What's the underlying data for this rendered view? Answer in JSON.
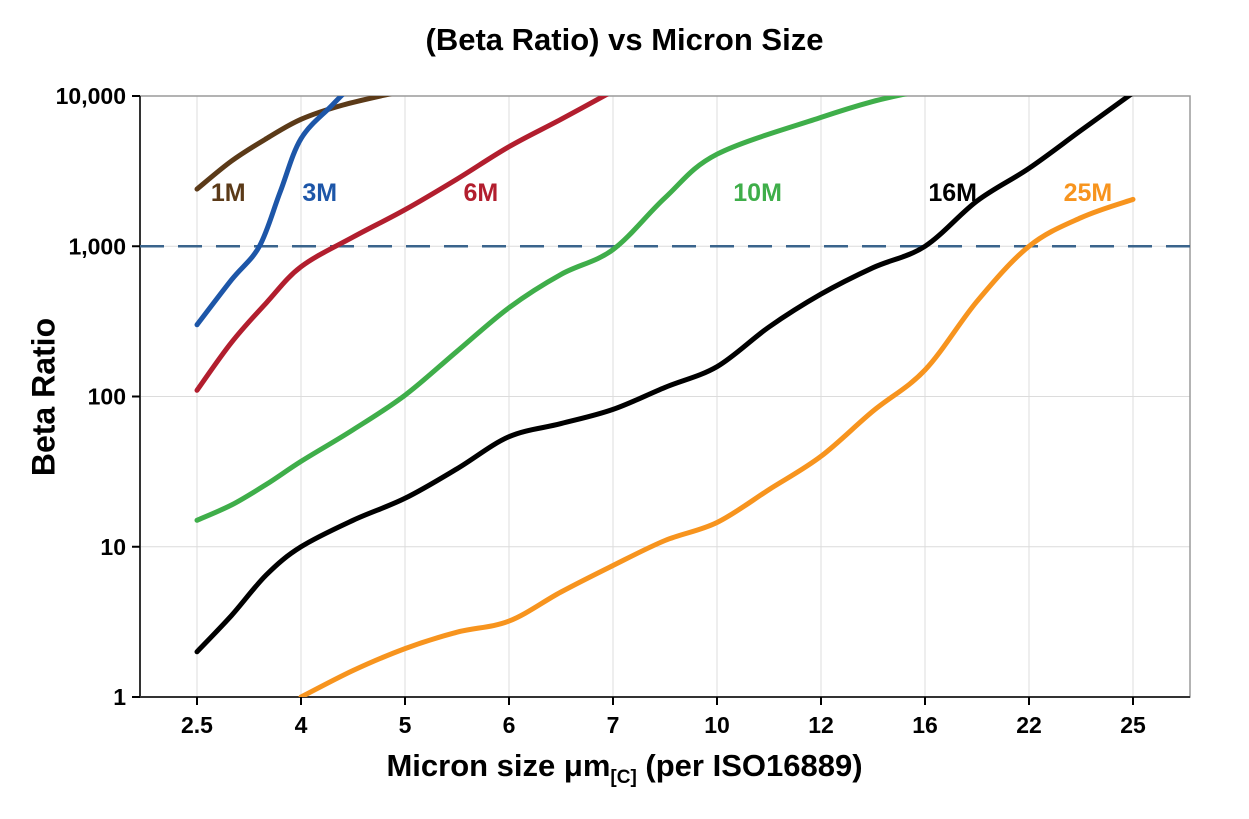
{
  "page": {
    "title": "(Beta Ratio) vs Micron Size",
    "y_axis_title": "Beta Ratio",
    "x_axis_title_main": "Micron size μm",
    "x_axis_title_sub": "[C]",
    "x_axis_title_rest": " (per ISO16889)"
  },
  "chart_data": {
    "type": "line",
    "title": "(Beta Ratio) vs Micron Size",
    "xlabel": "Micron size μm[C] (per ISO16889)",
    "ylabel": "Beta Ratio",
    "x_scale": "categorical",
    "y_scale": "log10",
    "ylim": [
      1,
      10000
    ],
    "grid": true,
    "grid_color": "#DCDCDC",
    "border_color": "#9A9A9A",
    "axis_color": "#333333",
    "categories": [
      2.5,
      4,
      5,
      6,
      7,
      10,
      12,
      16,
      22,
      25
    ],
    "x_tick_labels": [
      "2.5",
      "4",
      "5",
      "6",
      "7",
      "10",
      "12",
      "16",
      "22",
      "25"
    ],
    "y_tick_values": [
      1,
      10,
      100,
      1000,
      10000
    ],
    "y_tick_labels": [
      "1",
      "10",
      "100",
      "1,000",
      "10,000"
    ],
    "reference_line": {
      "y": 1000,
      "color": "#3A648C",
      "style": "dashed"
    },
    "series": [
      {
        "name": "1M",
        "color": "#5B3A18",
        "label_pos": [
          2.95,
          2300
        ],
        "points": [
          [
            2.5,
            2400
          ],
          [
            3,
            3700
          ],
          [
            3.5,
            5200
          ],
          [
            4,
            7000
          ],
          [
            4.4,
            8700
          ],
          [
            4.9,
            10500
          ]
        ]
      },
      {
        "name": "3M",
        "color": "#1D56A8",
        "label_pos": [
          4.18,
          2300
        ],
        "points": [
          [
            2.5,
            300
          ],
          [
            3,
            600
          ],
          [
            3.4,
            1000
          ],
          [
            3.7,
            2300
          ],
          [
            4,
            5200
          ],
          [
            4.3,
            8700
          ],
          [
            4.55,
            13000
          ]
        ]
      },
      {
        "name": "6M",
        "color": "#B21E2E",
        "label_pos": [
          5.73,
          2300
        ],
        "points": [
          [
            2.5,
            110
          ],
          [
            3,
            230
          ],
          [
            3.5,
            420
          ],
          [
            4,
            730
          ],
          [
            4.5,
            1150
          ],
          [
            5,
            1750
          ],
          [
            5.5,
            2800
          ],
          [
            6,
            4600
          ],
          [
            6.5,
            7000
          ],
          [
            7,
            10800
          ]
        ]
      },
      {
        "name": "10M",
        "color": "#3FAE4A",
        "label_pos": [
          10.78,
          2300
        ],
        "points": [
          [
            2.5,
            15
          ],
          [
            3,
            19
          ],
          [
            3.5,
            26
          ],
          [
            4,
            37
          ],
          [
            4.5,
            60
          ],
          [
            5,
            102
          ],
          [
            5.5,
            200
          ],
          [
            6,
            390
          ],
          [
            6.5,
            650
          ],
          [
            7,
            950
          ],
          [
            8.5,
            2100
          ],
          [
            10,
            4100
          ],
          [
            12,
            7200
          ],
          [
            14,
            9200
          ],
          [
            16,
            11000
          ]
        ]
      },
      {
        "name": "16M",
        "color": "#000000",
        "label_pos": [
          17.6,
          2300
        ],
        "points": [
          [
            2.5,
            2
          ],
          [
            3,
            3.5
          ],
          [
            3.5,
            6.5
          ],
          [
            4,
            10
          ],
          [
            4.5,
            15
          ],
          [
            5,
            21
          ],
          [
            5.5,
            33
          ],
          [
            6,
            54
          ],
          [
            6.5,
            66
          ],
          [
            7,
            82
          ],
          [
            8.5,
            115
          ],
          [
            10,
            158
          ],
          [
            11,
            290
          ],
          [
            12,
            480
          ],
          [
            14,
            720
          ],
          [
            16,
            1000
          ],
          [
            19,
            2000
          ],
          [
            22,
            3300
          ],
          [
            23.5,
            5900
          ],
          [
            25,
            10500
          ]
        ]
      },
      {
        "name": "25M",
        "color": "#F7941E",
        "label_pos": [
          23.7,
          2300
        ],
        "points": [
          [
            4,
            1
          ],
          [
            4.5,
            1.5
          ],
          [
            5,
            2.1
          ],
          [
            5.5,
            2.7
          ],
          [
            6,
            3.2
          ],
          [
            6.5,
            5
          ],
          [
            7,
            7.5
          ],
          [
            8.5,
            11
          ],
          [
            10,
            14.5
          ],
          [
            11,
            24
          ],
          [
            12,
            40
          ],
          [
            14,
            80
          ],
          [
            16,
            150
          ],
          [
            19,
            430
          ],
          [
            22,
            1000
          ],
          [
            23.5,
            1550
          ],
          [
            25,
            2050
          ]
        ]
      }
    ]
  }
}
